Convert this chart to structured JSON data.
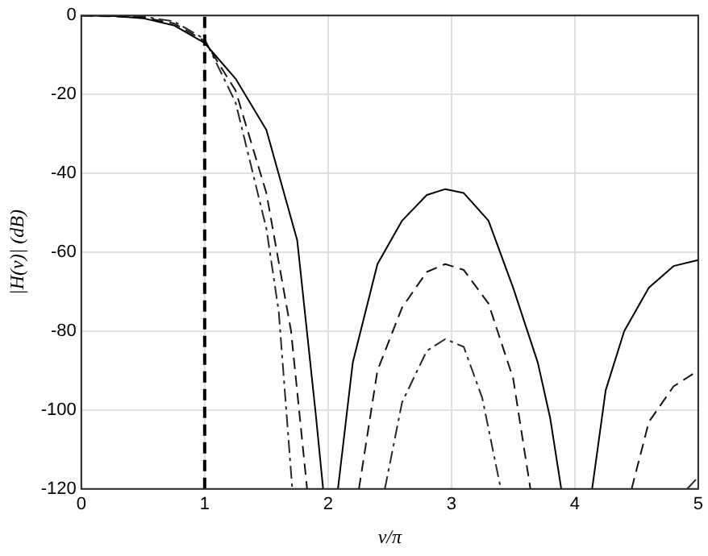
{
  "chart_data": {
    "type": "line",
    "xlabel": "v/π",
    "ylabel": "|H(v)| (dB)",
    "xlim": [
      0,
      5
    ],
    "xticks": [
      0,
      1,
      2,
      3,
      4,
      5
    ],
    "ylim": [
      -120,
      0
    ],
    "yticks": [
      -120,
      -100,
      -80,
      -60,
      -40,
      -20,
      0
    ],
    "grid": true,
    "legend": false,
    "marker": "none",
    "series": [
      {
        "color": "#000000",
        "line_style": "solid",
        "x": [
          0,
          0.25,
          0.5,
          0.75,
          1,
          1.25,
          1.5,
          1.75,
          1.9,
          1.96,
          2.02,
          2.08,
          2.2,
          2.4,
          2.6,
          2.8,
          2.95,
          3.1,
          3.3,
          3.5,
          3.7,
          3.8,
          3.89,
          4.0,
          4.14,
          4.25,
          4.4,
          4.6,
          4.8,
          5
        ],
        "values": [
          0,
          -0.1,
          -0.7,
          -2.5,
          -7,
          -16,
          -29,
          -57,
          -101,
          -120,
          null,
          -120,
          -88,
          -63,
          -52,
          -45.5,
          -44,
          -45,
          -52,
          -69,
          -88,
          -102,
          -120,
          null,
          -120,
          -95,
          -80,
          -69,
          -63.5,
          -62
        ]
      },
      {
        "color": "#141414",
        "line_style": "dashed",
        "x": [
          0,
          0.5,
          0.75,
          1,
          1.25,
          1.5,
          1.7,
          1.83,
          2.0,
          2.25,
          2.4,
          2.6,
          2.8,
          2.95,
          3.1,
          3.3,
          3.5,
          3.64,
          4.0,
          4.46,
          4.6,
          4.8,
          5
        ],
        "values": [
          0,
          -0.5,
          -2,
          -6.5,
          -19,
          -45,
          -80,
          -120,
          null,
          -120,
          -90,
          -74,
          -65,
          -63,
          -64.5,
          -73,
          -92,
          -120,
          null,
          -120,
          -103,
          -94,
          -90
        ]
      },
      {
        "color": "#282828",
        "line_style": "dashdot",
        "x": [
          0,
          0.5,
          0.75,
          1,
          1.25,
          1.5,
          1.6,
          1.71,
          2.0,
          2.46,
          2.6,
          2.8,
          2.95,
          3.1,
          3.25,
          3.4,
          4.5,
          4.91,
          5
        ],
        "values": [
          0,
          -0.3,
          -1.5,
          -6,
          -22,
          -54,
          -75,
          -120,
          null,
          -120,
          -98,
          -85,
          -82,
          -84,
          -97,
          -120,
          null,
          -120,
          -117
        ]
      }
    ],
    "ref_lines": [
      {
        "axis": "x",
        "value": 1,
        "color": "#000000",
        "line_style": "dashed"
      }
    ]
  }
}
